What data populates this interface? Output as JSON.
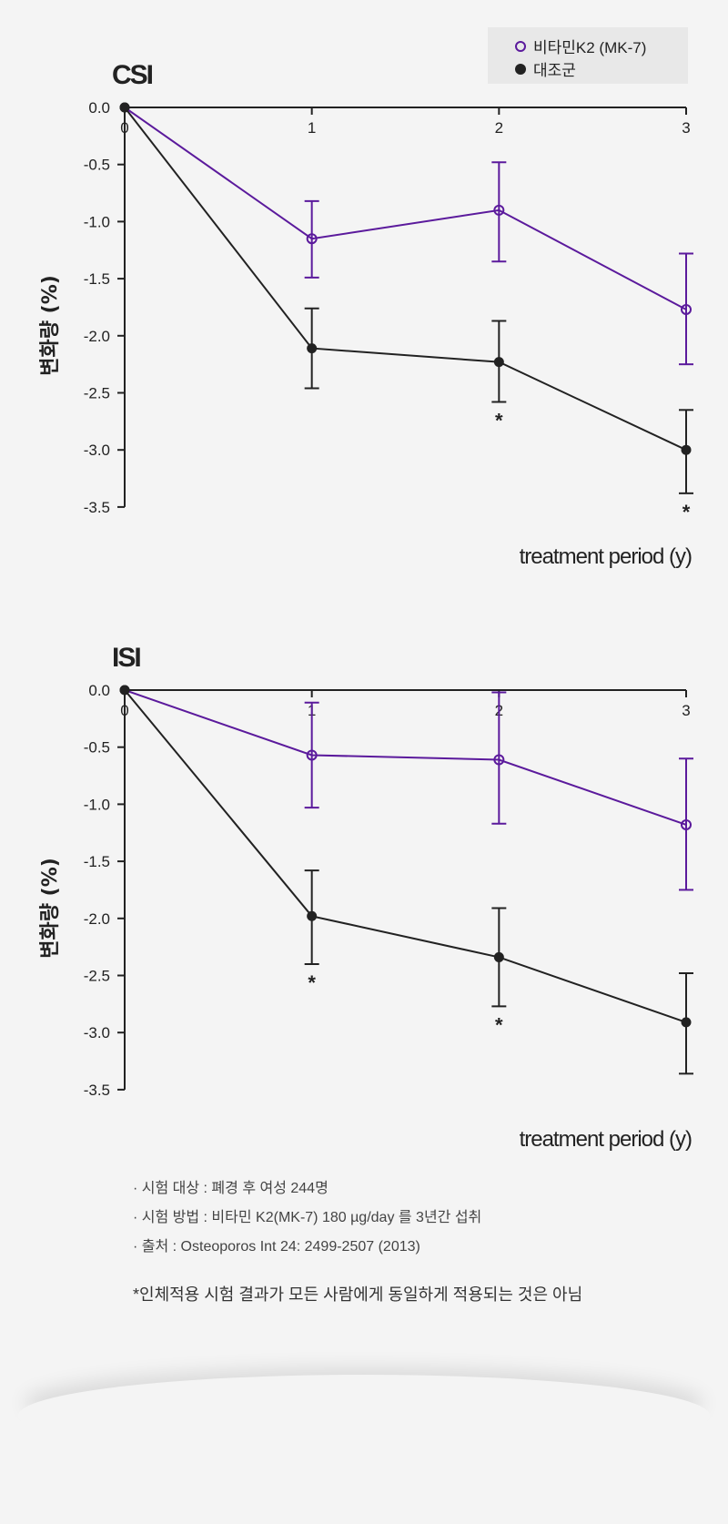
{
  "legend": {
    "items": [
      {
        "label": "비타민K2 (MK-7)",
        "marker": "open-circle",
        "color": "#5b1a9c"
      },
      {
        "label": "대조군",
        "marker": "filled-circle",
        "color": "#222222"
      }
    ]
  },
  "chart_data": [
    {
      "type": "line",
      "title": "CSI",
      "xlabel": "treatment period (y)",
      "ylabel": "변화량 (%)",
      "x": [
        0,
        1,
        2,
        3
      ],
      "xticks": [
        "0",
        "1",
        "2",
        "3"
      ],
      "yticks": [
        "0.0",
        "-0.5",
        "-1.0",
        "-1.5",
        "-2.0",
        "-2.5",
        "-3.0",
        "-3.5"
      ],
      "ylim": [
        -3.5,
        0
      ],
      "grid": false,
      "series": [
        {
          "name": "비타민K2 (MK-7)",
          "color": "#5b1a9c",
          "marker": "open-circle",
          "values": [
            0,
            -1.15,
            -0.9,
            -1.77
          ],
          "err_upper": [
            null,
            -0.82,
            -0.48,
            -1.28
          ],
          "err_lower": [
            null,
            -1.49,
            -1.35,
            -2.25
          ]
        },
        {
          "name": "대조군",
          "color": "#222222",
          "marker": "filled-circle",
          "values": [
            0,
            -2.11,
            -2.23,
            -3.0
          ],
          "err_upper": [
            null,
            -1.76,
            -1.87,
            -2.65
          ],
          "err_lower": [
            null,
            -2.46,
            -2.58,
            -3.38
          ],
          "significance": [
            false,
            false,
            true,
            true
          ]
        }
      ]
    },
    {
      "type": "line",
      "title": "ISI",
      "xlabel": "treatment period (y)",
      "ylabel": "변화량 (%)",
      "x": [
        0,
        1,
        2,
        3
      ],
      "xticks": [
        "0",
        "1",
        "2",
        "3"
      ],
      "yticks": [
        "0.0",
        "-0.5",
        "-1.0",
        "-1.5",
        "-2.0",
        "-2.5",
        "-3.0",
        "-3.5"
      ],
      "ylim": [
        -3.5,
        0
      ],
      "grid": false,
      "series": [
        {
          "name": "비타민K2 (MK-7)",
          "color": "#5b1a9c",
          "marker": "open-circle",
          "values": [
            0,
            -0.57,
            -0.61,
            -1.18
          ],
          "err_upper": [
            null,
            -0.11,
            -0.02,
            -0.6
          ],
          "err_lower": [
            null,
            -1.03,
            -1.17,
            -1.75
          ]
        },
        {
          "name": "대조군",
          "color": "#222222",
          "marker": "filled-circle",
          "values": [
            0,
            -1.98,
            -2.34,
            -2.91
          ],
          "err_upper": [
            null,
            -1.58,
            -1.91,
            -2.48
          ],
          "err_lower": [
            null,
            -2.4,
            -2.77,
            -3.36
          ],
          "significance": [
            false,
            true,
            true,
            false
          ]
        }
      ]
    }
  ],
  "footnotes": [
    "· 시험 대상 : 폐경 후 여성 244명",
    "· 시험 방법 : 비타민 K2(MK-7) 180 µg/day 를 3년간 섭취",
    "· 출처 : Osteoporos Int 24: 2499-2507 (2013)"
  ],
  "significance_marker": "*",
  "disclaimer": "*인체적용 시험 결과가 모든 사람에게 동일하게 적용되는 것은 아님"
}
